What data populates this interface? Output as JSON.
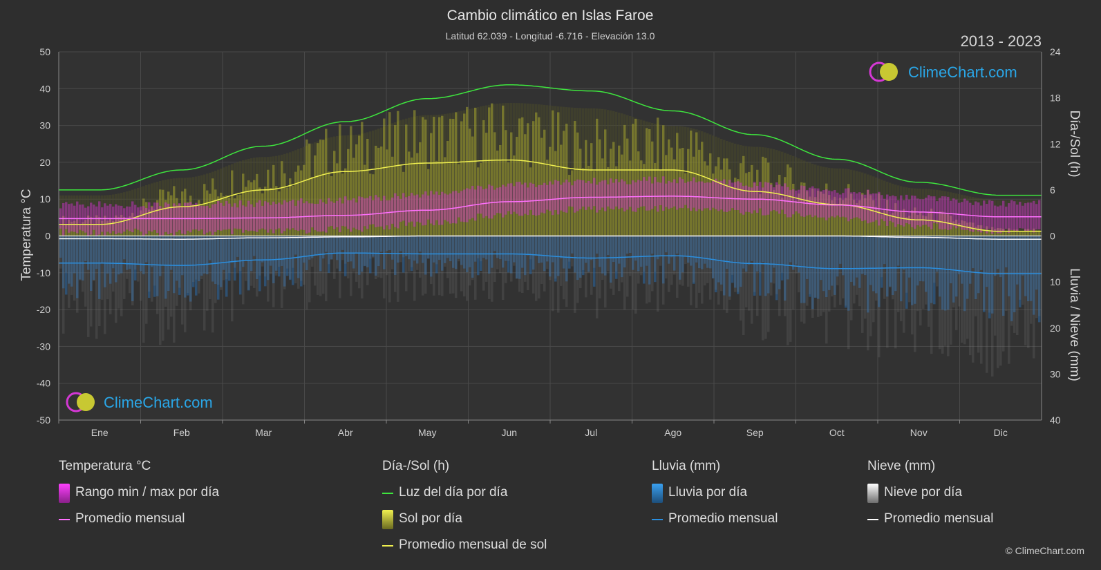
{
  "title": "Cambio climático en Islas Faroe",
  "subtitle": "Latitud 62.039 - Longitud -6.716 - Elevación 13.0",
  "period": "2013 - 2023",
  "logo_text": "ClimeChart.com",
  "copyright": "© ClimeChart.com",
  "colors": {
    "background": "#2e2e2e",
    "daylight": "#3ee63e",
    "sunshine_avg": "#f0f050",
    "sunshine_bar": "#b8b82e",
    "temp_avg": "#ff70ff",
    "temp_range": "#d630d6",
    "rain_avg": "#2a8fe0",
    "rain_bar": "#2b6aa5",
    "snow_avg": "#ffffff",
    "snow_bar": "#8a8a8a"
  },
  "chart_data": {
    "type": "line",
    "months": [
      "Ene",
      "Feb",
      "Mar",
      "Abr",
      "May",
      "Jun",
      "Jul",
      "Ago",
      "Sep",
      "Oct",
      "Nov",
      "Dic"
    ],
    "left_axis": {
      "title": "Temperatura °C",
      "min": -50,
      "max": 50,
      "ticks": [
        50,
        40,
        30,
        20,
        10,
        0,
        -10,
        -20,
        -30,
        -40,
        -50
      ]
    },
    "right_axis_top": {
      "title": "Día-/Sol (h)",
      "min": 0,
      "max": 24,
      "ticks": [
        24,
        18,
        12,
        6,
        0
      ]
    },
    "right_axis_bottom": {
      "title": "Lluvia / Nieve (mm)",
      "min": 0,
      "max": 40,
      "ticks": [
        0,
        10,
        20,
        30,
        40
      ]
    },
    "series": [
      {
        "name": "Luz del día por día",
        "axis": "hours",
        "values": [
          6.0,
          8.6,
          11.7,
          14.9,
          17.9,
          19.7,
          18.9,
          16.3,
          13.2,
          10.0,
          7.0,
          5.3
        ]
      },
      {
        "name": "Promedio mensual de sol",
        "axis": "hours",
        "values": [
          1.5,
          3.8,
          6.0,
          8.4,
          9.5,
          9.9,
          8.6,
          8.6,
          5.8,
          4.1,
          2.1,
          0.6
        ]
      },
      {
        "name": "Promedio mensual",
        "axis": "temperature",
        "values": [
          4.7,
          4.7,
          4.9,
          5.6,
          7.0,
          9.3,
          10.5,
          10.8,
          10.0,
          8.4,
          6.5,
          5.2
        ]
      },
      {
        "name": "Temperatura máxima",
        "axis": "temperature",
        "values": [
          7.5,
          7.4,
          7.8,
          8.8,
          10.4,
          12.7,
          13.9,
          14.2,
          13.0,
          11.2,
          9.2,
          7.9
        ]
      },
      {
        "name": "Temperatura mínima",
        "axis": "temperature",
        "values": [
          2.0,
          2.0,
          2.1,
          2.9,
          4.5,
          6.9,
          8.3,
          8.6,
          7.6,
          5.8,
          3.8,
          2.5
        ]
      },
      {
        "name": "Lluvia promedio mensual",
        "axis": "mm",
        "values": [
          5.9,
          6.4,
          5.2,
          3.7,
          3.9,
          3.9,
          4.8,
          4.3,
          6.0,
          7.1,
          6.9,
          8.2
        ]
      },
      {
        "name": "Nieve promedio mensual",
        "axis": "mm",
        "values": [
          0.6,
          0.7,
          0.4,
          0.2,
          0.0,
          0.0,
          0.0,
          0.0,
          0.0,
          0.0,
          0.3,
          0.7
        ]
      }
    ],
    "grid": true
  },
  "legend": {
    "temperature": {
      "heading": "Temperatura °C",
      "range_label": "Rango min / max por día",
      "avg_label": "Promedio mensual"
    },
    "sun": {
      "heading": "Día-/Sol (h)",
      "daylight_label": "Luz del día por día",
      "sunshine_label": "Sol por día",
      "sun_avg_label": "Promedio mensual de sol"
    },
    "rain": {
      "heading": "Lluvia (mm)",
      "rain_label": "Lluvia por día",
      "avg_label": "Promedio mensual"
    },
    "snow": {
      "heading": "Nieve (mm)",
      "snow_label": "Nieve por día",
      "avg_label": "Promedio mensual"
    }
  }
}
